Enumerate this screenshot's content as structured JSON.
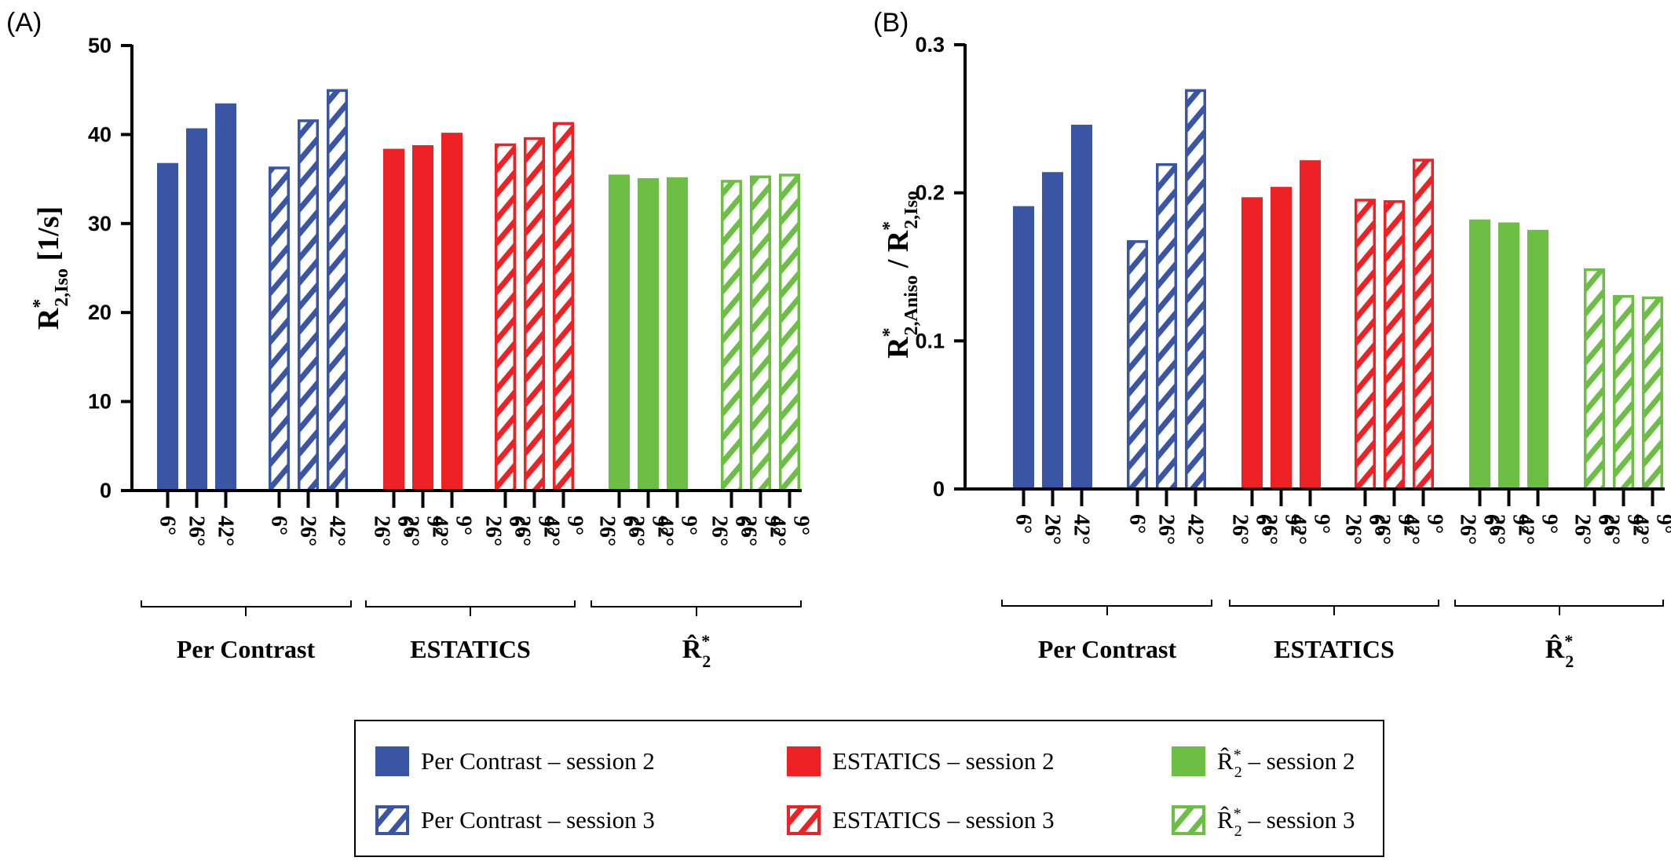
{
  "colors": {
    "per_contrast": "#3a55a4",
    "estatics": "#ee2124",
    "r2hat": "#6dbe45",
    "axis": "#000000"
  },
  "panels": [
    {
      "label": "(A)"
    },
    {
      "label": "(B)"
    }
  ],
  "groups": [
    {
      "label": "Per Contrast",
      "key": "per_contrast"
    },
    {
      "label": "ESTATICS",
      "key": "estatics"
    },
    {
      "label": "R̂*2",
      "key": "r2hat",
      "math": true
    }
  ],
  "ticks": {
    "per_contrast": [
      "6°",
      "26°",
      "42°"
    ],
    "multi": [
      [
        "6°",
        "26°"
      ],
      [
        "9°",
        "26°"
      ],
      [
        "9°",
        "42°"
      ]
    ]
  },
  "legend": {
    "items": [
      {
        "label": "Per Contrast – session 2",
        "key": "per_contrast",
        "hatched": false
      },
      {
        "label": "Per Contrast – session 3",
        "key": "per_contrast",
        "hatched": true
      },
      {
        "label": "ESTATICS – session 2",
        "key": "estatics",
        "hatched": false
      },
      {
        "label": "ESTATICS – session 3",
        "key": "estatics",
        "hatched": true
      },
      {
        "label": "– session 2",
        "key": "r2hat",
        "hatched": false,
        "math": true
      },
      {
        "label": "– session 3",
        "key": "r2hat",
        "hatched": true,
        "math": true
      }
    ]
  },
  "chart_data": [
    {
      "type": "bar",
      "ylabel": "R*2,Iso [1/s]",
      "ylabel_parts": {
        "main": "R",
        "sup": "*",
        "sub": "2,Iso",
        "unit": "[1/s]"
      },
      "ylim": [
        0,
        50
      ],
      "yticks": [
        "0",
        "10",
        "20",
        "30",
        "40",
        "50"
      ],
      "series": [
        {
          "name": "Per Contrast – session 2",
          "values": [
            36.8,
            40.7,
            43.5
          ]
        },
        {
          "name": "Per Contrast – session 3",
          "values": [
            36.4,
            41.7,
            45.1
          ]
        },
        {
          "name": "ESTATICS – session 2",
          "values": [
            38.4,
            38.8,
            40.2
          ]
        },
        {
          "name": "ESTATICS – session 3",
          "values": [
            39.0,
            39.7,
            41.4
          ]
        },
        {
          "name": "R̂*2 – session 2",
          "values": [
            35.5,
            35.1,
            35.2
          ]
        },
        {
          "name": "R̂*2 – session 3",
          "values": [
            34.9,
            35.4,
            35.6
          ]
        }
      ]
    },
    {
      "type": "bar",
      "ylabel": "R*2,Aniso / R*2,Iso",
      "ylabel_parts": {
        "main": "R",
        "sup": "*",
        "sub": "2,Aniso",
        "mid": " / ",
        "main2": "R",
        "sup2": "*",
        "sub2": "2,Iso"
      },
      "ylim": [
        0,
        0.3
      ],
      "yticks": [
        "0",
        "0.1",
        "0.2",
        "0.3"
      ],
      "series": [
        {
          "name": "Per Contrast – session 2",
          "values": [
            0.191,
            0.214,
            0.246
          ]
        },
        {
          "name": "Per Contrast – session 3",
          "values": [
            0.168,
            0.22,
            0.27
          ]
        },
        {
          "name": "ESTATICS – session 2",
          "values": [
            0.197,
            0.204,
            0.222
          ]
        },
        {
          "name": "ESTATICS – session 3",
          "values": [
            0.196,
            0.195,
            0.223
          ]
        },
        {
          "name": "R̂*2 – session 2",
          "values": [
            0.182,
            0.18,
            0.175
          ]
        },
        {
          "name": "R̂*2 – session 3",
          "values": [
            0.149,
            0.131,
            0.13
          ]
        }
      ]
    }
  ]
}
